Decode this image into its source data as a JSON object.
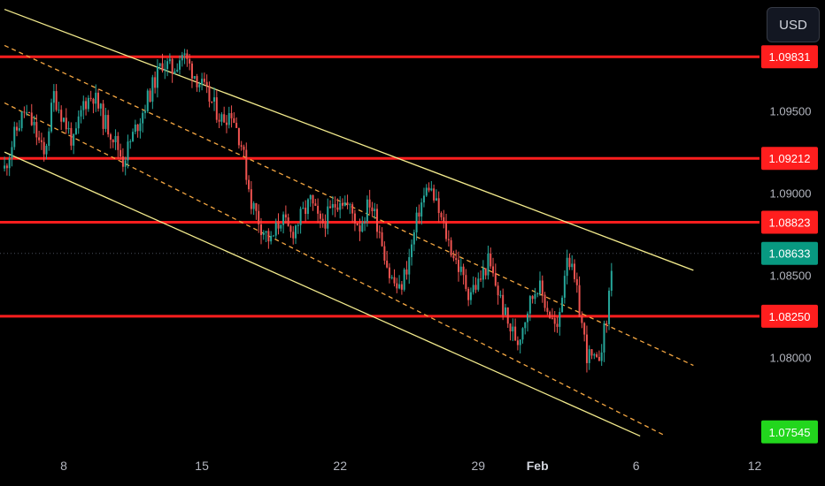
{
  "toolbar": {
    "currency_label": "USD"
  },
  "colors": {
    "background": "#000000",
    "level_line": "#ff1e1e",
    "channel_line": "#f2ea8c",
    "channel_mid": "#f5a742",
    "candle_up": "#26a69a",
    "candle_down": "#ef5350",
    "last_price_badge": "#089981",
    "target_badge": "#22d61d",
    "axis_text": "#b2b5be"
  },
  "chart_data": {
    "type": "candlestick",
    "instrument_quote": "USD",
    "x_ticks": [
      {
        "label": "8",
        "date": "Jan 8"
      },
      {
        "label": "15",
        "date": "Jan 15"
      },
      {
        "label": "22",
        "date": "Jan 22"
      },
      {
        "label": "29",
        "date": "Jan 29"
      },
      {
        "label": "Feb",
        "date": "Feb 1"
      },
      {
        "label": "6",
        "date": "Feb 6"
      },
      {
        "label": "12",
        "date": "Feb 12"
      }
    ],
    "y_ticks": [
      "1.09500",
      "1.09000",
      "1.08500",
      "1.08000"
    ],
    "ylim": [
      1.0735,
      1.1015
    ],
    "last_price": "1.08633",
    "horizontal_levels": [
      {
        "label": "1.09831",
        "value": 1.09831
      },
      {
        "label": "1.09212",
        "value": 1.09212
      },
      {
        "label": "1.08823",
        "value": 1.08823
      },
      {
        "label": "1.08250",
        "value": 1.0825
      }
    ],
    "target": {
      "label": "1.07545",
      "value": 1.07545
    },
    "channel": {
      "upper": [
        {
          "date": "Jan 5",
          "value": 1.1012
        },
        {
          "date": "Feb 8.9",
          "value": 1.0853
        }
      ],
      "lower": [
        {
          "date": "Jan 5",
          "value": 1.0925
        },
        {
          "date": "Feb 6.2",
          "value": 1.0752
        }
      ],
      "mid_upper": [
        {
          "date": "Jan 5",
          "value": 1.099
        },
        {
          "date": "Feb 8.9",
          "value": 1.0795
        }
      ],
      "mid_lower": [
        {
          "date": "Jan 5",
          "value": 1.0955
        },
        {
          "date": "Feb 7.5",
          "value": 1.0752
        }
      ]
    },
    "price_path": [
      [
        "Jan 5",
        1.0915
      ],
      [
        "Jan 5.5",
        1.0935
      ],
      [
        "Jan 6",
        1.095
      ],
      [
        "Jan 6.5",
        1.094
      ],
      [
        "Jan 7",
        1.0922
      ],
      [
        "Jan 7.5",
        1.096
      ],
      [
        "Jan 8",
        1.0945
      ],
      [
        "Jan 8.5",
        1.093
      ],
      [
        "Jan 9",
        1.0955
      ],
      [
        "Jan 9.5",
        1.096
      ],
      [
        "Jan 10",
        1.0945
      ],
      [
        "Jan 10.5",
        1.0935
      ],
      [
        "Jan 11",
        1.092
      ],
      [
        "Jan 11.5",
        1.0935
      ],
      [
        "Jan 12",
        1.095
      ],
      [
        "Jan 12.5",
        1.0965
      ],
      [
        "Jan 13",
        1.098
      ],
      [
        "Jan 13.5",
        1.0975
      ],
      [
        "Jan 14",
        1.0985
      ],
      [
        "Jan 14.5",
        1.0975
      ],
      [
        "Jan 15",
        1.0965
      ],
      [
        "Jan 15.5",
        1.0955
      ],
      [
        "Jan 16",
        1.0945
      ],
      [
        "Jan 16.5",
        1.095
      ],
      [
        "Jan 17",
        1.093
      ],
      [
        "Jan 17.5",
        1.0895
      ],
      [
        "Jan 18",
        1.088
      ],
      [
        "Jan 18.5",
        1.087
      ],
      [
        "Jan 19",
        1.0885
      ],
      [
        "Jan 19.5",
        1.0875
      ],
      [
        "Jan 20",
        1.0885
      ],
      [
        "Jan 20.5",
        1.0895
      ],
      [
        "Jan 21",
        1.088
      ],
      [
        "Jan 21.5",
        1.0888
      ],
      [
        "Jan 22",
        1.0898
      ],
      [
        "Jan 22.5",
        1.089
      ],
      [
        "Jan 23",
        1.088
      ],
      [
        "Jan 23.5",
        1.0895
      ],
      [
        "Jan 24",
        1.0878
      ],
      [
        "Jan 24.5",
        1.085
      ],
      [
        "Jan 25",
        1.084
      ],
      [
        "Jan 25.5",
        1.086
      ],
      [
        "Jan 26",
        1.089
      ],
      [
        "Jan 26.5",
        1.0905
      ],
      [
        "Jan 27",
        1.0888
      ],
      [
        "Jan 27.5",
        1.087
      ],
      [
        "Jan 28",
        1.0855
      ],
      [
        "Jan 28.5",
        1.084
      ],
      [
        "Jan 29",
        1.0845
      ],
      [
        "Jan 29.5",
        1.0858
      ],
      [
        "Jan 30",
        1.084
      ],
      [
        "Jan 30.5",
        1.082
      ],
      [
        "Jan 31",
        1.081
      ],
      [
        "Jan 31.5",
        1.083
      ],
      [
        "Feb 1",
        1.0845
      ],
      [
        "Feb 1.5",
        1.083
      ],
      [
        "Feb 2",
        1.0815
      ],
      [
        "Feb 2.5",
        1.0865
      ],
      [
        "Feb 3",
        1.0838
      ],
      [
        "Feb 3.5",
        1.0802
      ],
      [
        "Feb 4",
        1.0795
      ],
      [
        "Feb 4.5",
        1.0822
      ],
      [
        "Feb 4.8",
        1.0863
      ]
    ]
  }
}
